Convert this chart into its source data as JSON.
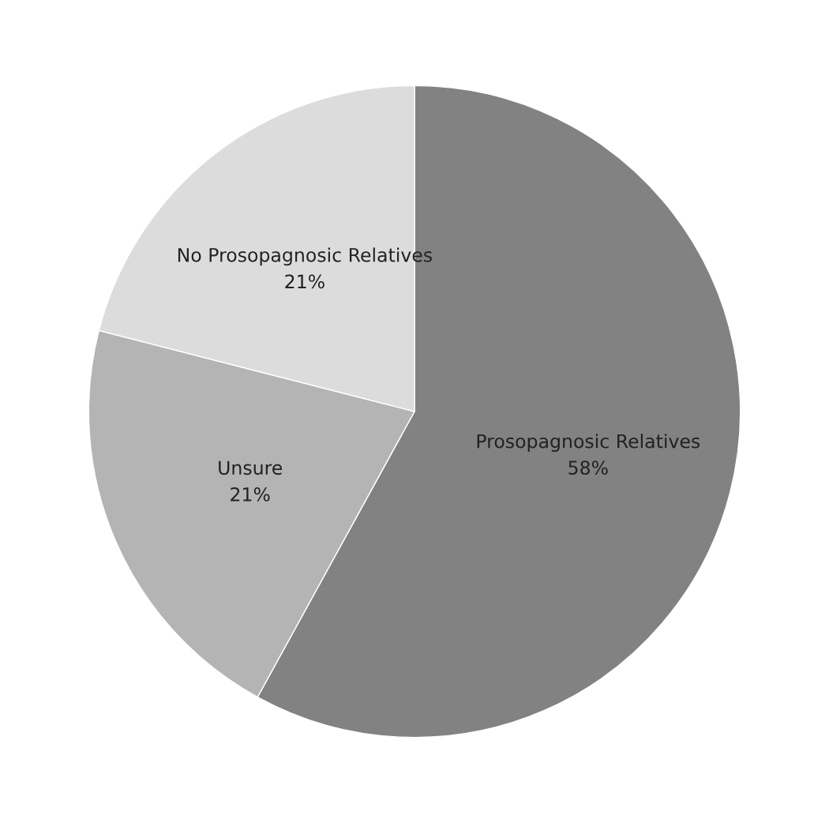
{
  "chart_data": {
    "type": "pie",
    "categories": [
      "Prosopagnosic Relatives",
      "Unsure",
      "No Prosopagnosic Relatives"
    ],
    "values": [
      58,
      21,
      21
    ],
    "value_labels": [
      "58%",
      "21%",
      "21%"
    ],
    "colors": [
      "#828282",
      "#b4b4b4",
      "#dcdcdc"
    ],
    "legend": false
  }
}
